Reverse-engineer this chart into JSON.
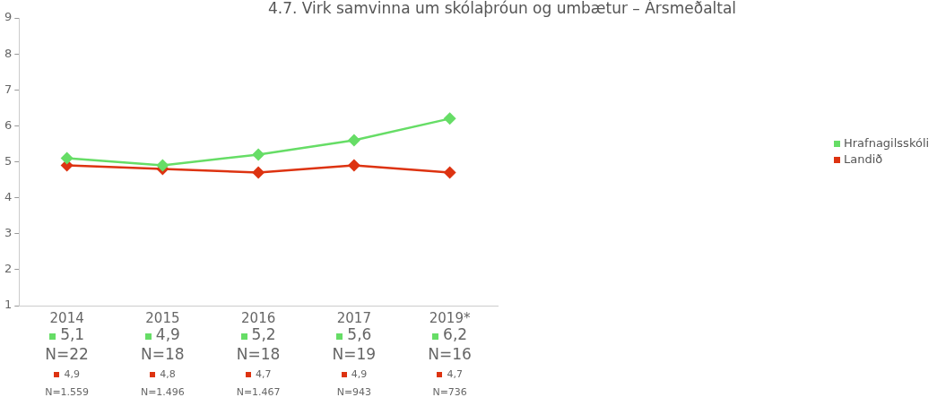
{
  "chart_data": {
    "type": "line",
    "title": "4.7. Virk samvinna um skólaþróun og umbætur – Ársmeðaltal",
    "categories": [
      "2014",
      "2015",
      "2016",
      "2017",
      "2019*"
    ],
    "series": [
      {
        "name": "Hrafnagilsskóli",
        "color": "#66dd66",
        "values": [
          5.1,
          4.9,
          5.2,
          5.6,
          6.2
        ],
        "value_labels": [
          "5,1",
          "4,9",
          "5,2",
          "5,6",
          "6,2"
        ]
      },
      {
        "name": "Landið",
        "color": "#dd3311",
        "values": [
          4.9,
          4.8,
          4.7,
          4.9,
          4.7
        ],
        "value_labels": [
          "4,9",
          "4,8",
          "4,7",
          "4,9",
          "4,7"
        ]
      }
    ],
    "annotations": [
      "N=22",
      "N=18",
      "N=18",
      "N=19",
      "N=16",
      "N=1.559",
      "N=1.496",
      "N=1.467",
      "N=943",
      "N=736"
    ],
    "ylim": [
      1,
      9
    ],
    "yticks": [
      1,
      2,
      3,
      4,
      5,
      6,
      7,
      8,
      9
    ],
    "grid": false,
    "legend": "right",
    "marker": "diamond",
    "line_style": "solid"
  }
}
